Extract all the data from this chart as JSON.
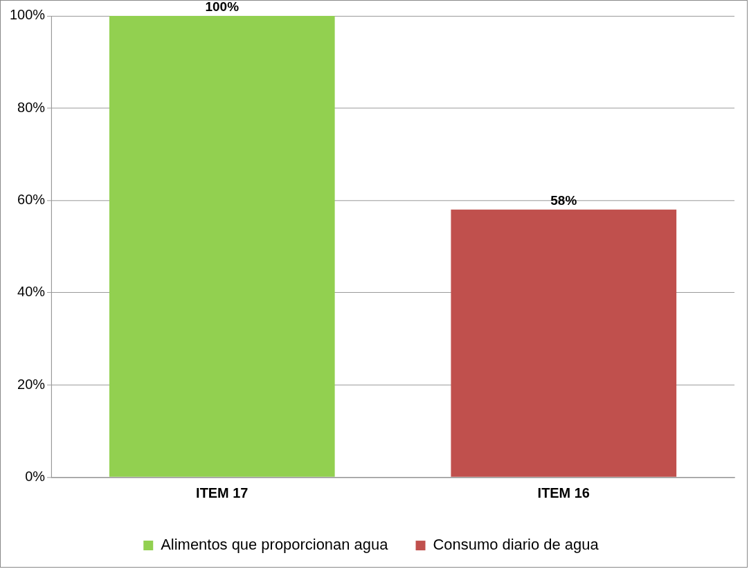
{
  "chart_data": {
    "type": "bar",
    "categories": [
      "ITEM 17",
      "ITEM 16"
    ],
    "series": [
      {
        "name": "Alimentos que proporcionan agua",
        "color": "#92d050",
        "values": [
          100,
          null
        ],
        "value_labels": [
          "100%",
          null
        ]
      },
      {
        "name": "Consumo diario de agua",
        "color": "#c0504d",
        "values": [
          null,
          58
        ],
        "value_labels": [
          null,
          "58%"
        ]
      }
    ],
    "ylim": [
      0,
      100
    ],
    "yticks": [
      {
        "value": 0,
        "label": "0%"
      },
      {
        "value": 20,
        "label": "20%"
      },
      {
        "value": 40,
        "label": "40%"
      },
      {
        "value": 60,
        "label": "60%"
      },
      {
        "value": 80,
        "label": "80%"
      },
      {
        "value": 100,
        "label": "100%"
      }
    ],
    "grid": "y",
    "legend": "bottom"
  }
}
